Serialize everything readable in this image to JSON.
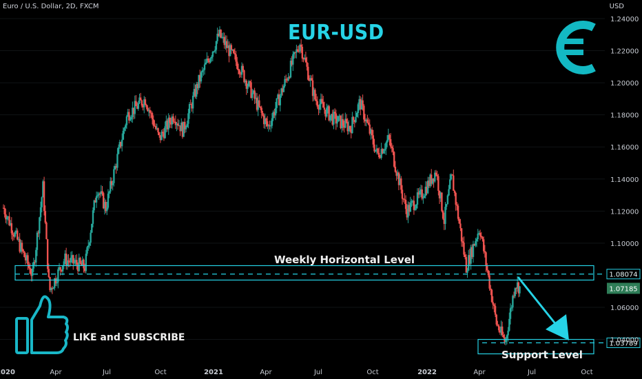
{
  "header": {
    "symbol_line": "Euro / U.S. Dollar, 2D, FXCM",
    "unit": "USD"
  },
  "chart_data": {
    "type": "candlestick",
    "title": "EUR-USD",
    "x_tick_labels": [
      "2020",
      "Apr",
      "Jul",
      "Oct",
      "2021",
      "Apr",
      "Jul",
      "Oct",
      "2022",
      "Apr",
      "Jul",
      "Oct"
    ],
    "y_tick_labels": [
      "1.24000",
      "1.22000",
      "1.20000",
      "1.18000",
      "1.16000",
      "1.14000",
      "1.12000",
      "1.10000",
      "1.06000",
      "1.04000"
    ],
    "ylim": [
      1.028,
      1.245
    ],
    "close_path": [
      {
        "date": "2020-01-01",
        "value": 1.122
      },
      {
        "date": "2020-02-20",
        "value": 1.08
      },
      {
        "date": "2020-03-09",
        "value": 1.135
      },
      {
        "date": "2020-03-20",
        "value": 1.07
      },
      {
        "date": "2020-04-15",
        "value": 1.09
      },
      {
        "date": "2020-05-20",
        "value": 1.085
      },
      {
        "date": "2020-06-10",
        "value": 1.135
      },
      {
        "date": "2020-06-25",
        "value": 1.122
      },
      {
        "date": "2020-08-01",
        "value": 1.18
      },
      {
        "date": "2020-09-01",
        "value": 1.19
      },
      {
        "date": "2020-09-25",
        "value": 1.165
      },
      {
        "date": "2020-10-20",
        "value": 1.18
      },
      {
        "date": "2020-11-05",
        "value": 1.17
      },
      {
        "date": "2020-12-01",
        "value": 1.2
      },
      {
        "date": "2021-01-06",
        "value": 1.23
      },
      {
        "date": "2021-02-10",
        "value": 1.21
      },
      {
        "date": "2021-03-31",
        "value": 1.172
      },
      {
        "date": "2021-05-25",
        "value": 1.225
      },
      {
        "date": "2021-06-20",
        "value": 1.19
      },
      {
        "date": "2021-07-20",
        "value": 1.178
      },
      {
        "date": "2021-08-20",
        "value": 1.172
      },
      {
        "date": "2021-09-05",
        "value": 1.188
      },
      {
        "date": "2021-10-05",
        "value": 1.155
      },
      {
        "date": "2021-10-25",
        "value": 1.165
      },
      {
        "date": "2021-11-24",
        "value": 1.12
      },
      {
        "date": "2021-12-20",
        "value": 1.13
      },
      {
        "date": "2022-01-14",
        "value": 1.145
      },
      {
        "date": "2022-01-28",
        "value": 1.114
      },
      {
        "date": "2022-02-10",
        "value": 1.142
      },
      {
        "date": "2022-03-07",
        "value": 1.085
      },
      {
        "date": "2022-03-30",
        "value": 1.11
      },
      {
        "date": "2022-04-28",
        "value": 1.05
      },
      {
        "date": "2022-05-13",
        "value": 1.038
      },
      {
        "date": "2022-05-30",
        "value": 1.075
      },
      {
        "date": "2022-06-08",
        "value": 1.072
      }
    ],
    "levels": [
      {
        "label": "Weekly Horizontal Level",
        "value": 1.08074,
        "price_label": "1.08074",
        "band": [
          1.077,
          1.086
        ]
      },
      {
        "label": "Support Level",
        "value": 1.03789,
        "price_label": "1.03789",
        "band": [
          1.031,
          1.04
        ]
      }
    ],
    "last_price": {
      "value": 1.07185,
      "label": "1.07185"
    }
  },
  "annotations": {
    "like_text": "LIKE and SUBSCRIBE"
  },
  "colors": {
    "up": "#26a69a",
    "down": "#ef5350",
    "accent": "#26d3e6",
    "last_price_bg": "#2e7d57"
  }
}
